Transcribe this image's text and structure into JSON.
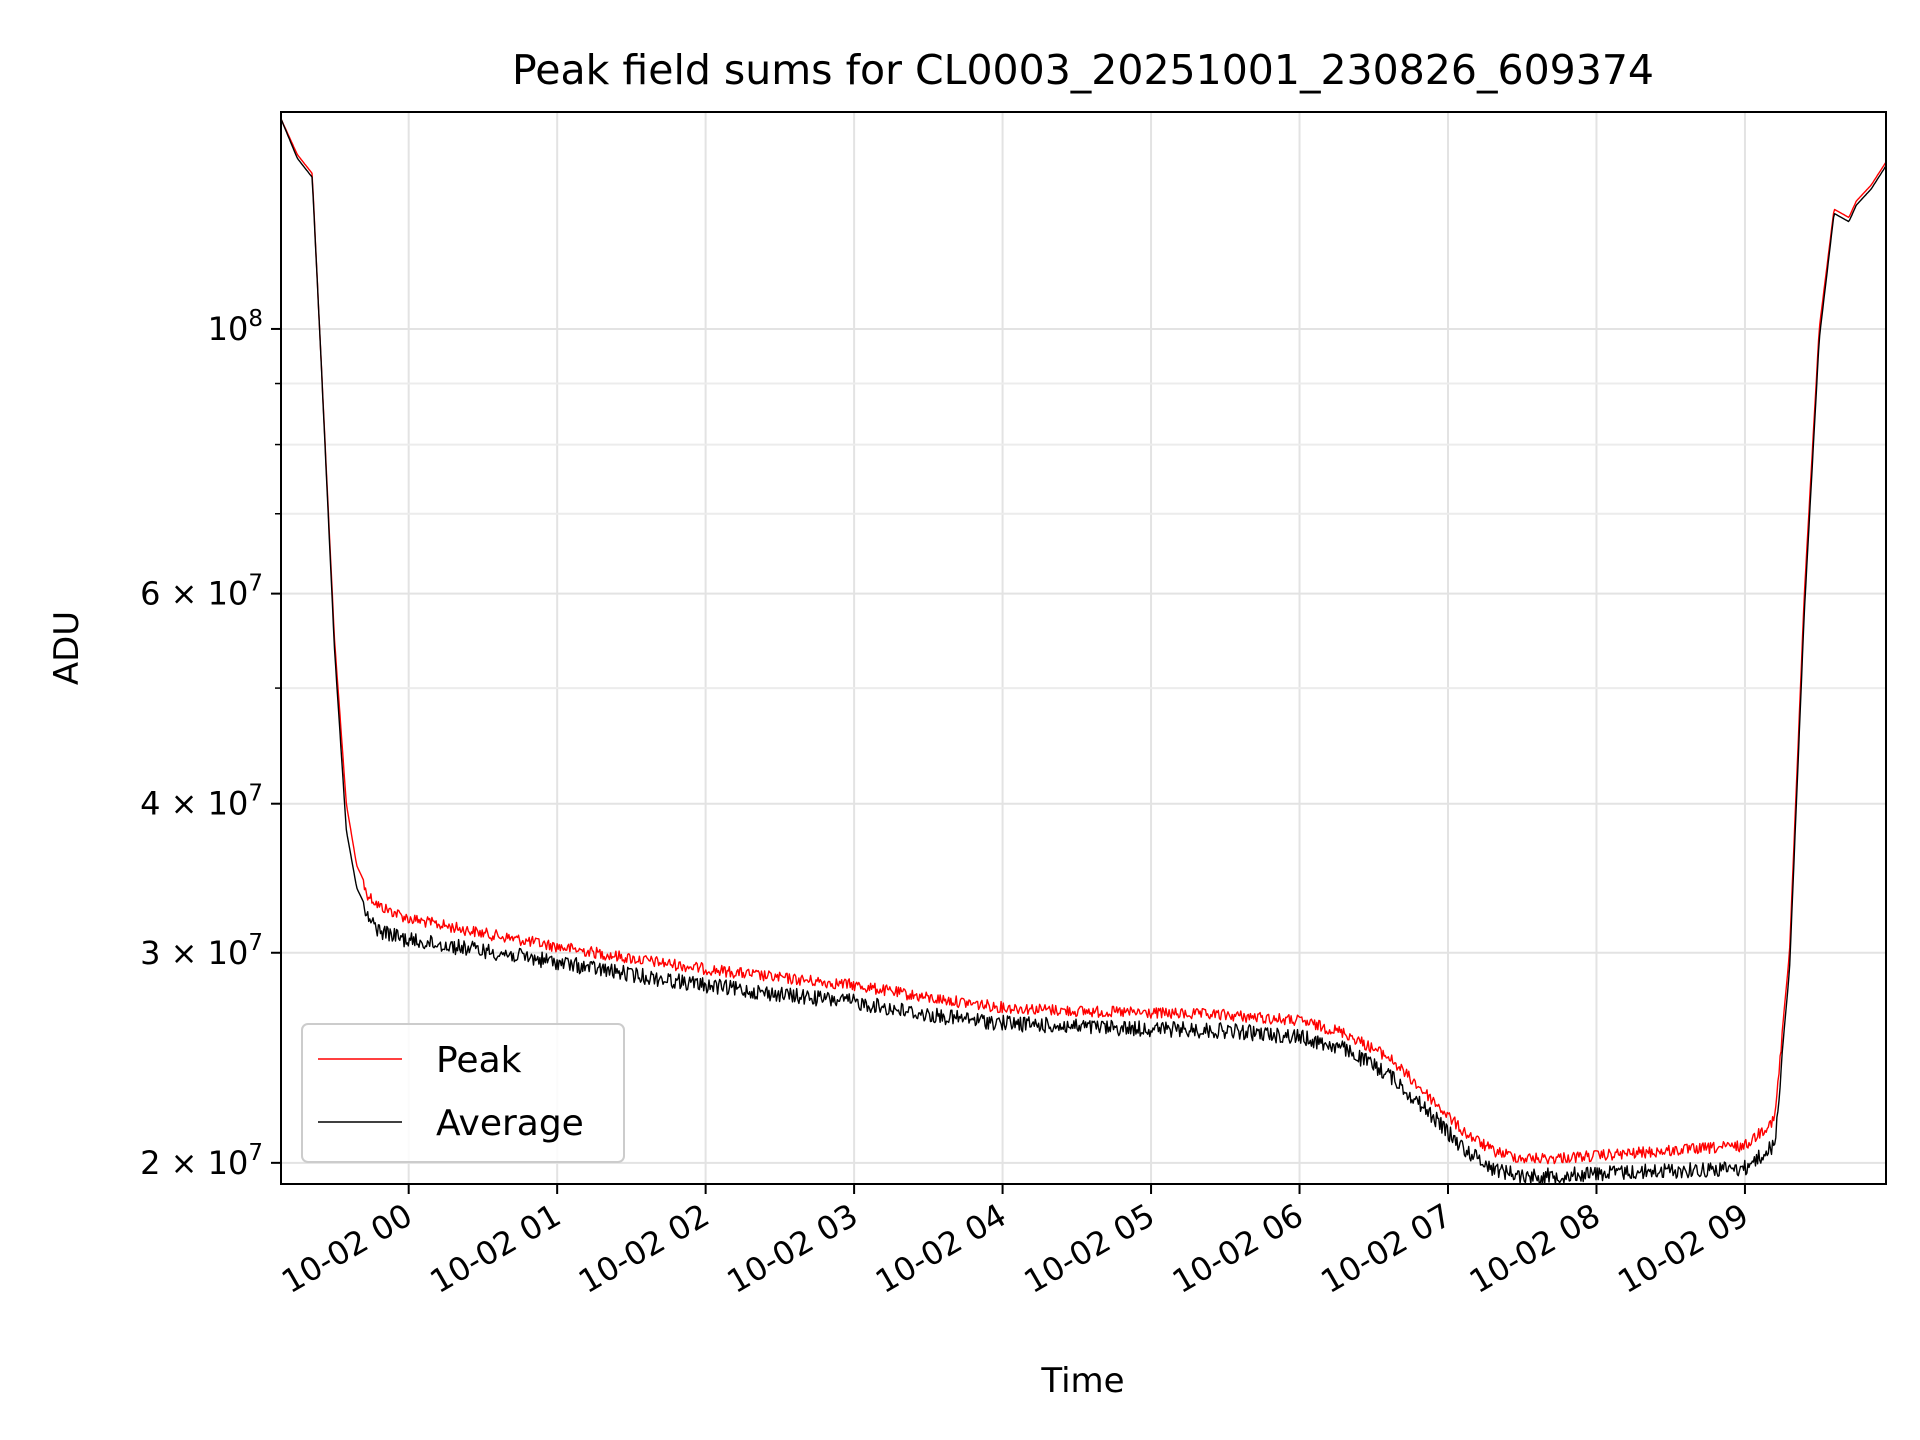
{
  "chart_data": {
    "type": "line",
    "title": "Peak field sums for CL0003_20251001_230826_609374",
    "xlabel": "Time",
    "ylabel": "ADU",
    "yscale": "log",
    "ylim": [
      19200000,
      152000000
    ],
    "xlim_hours": [
      -0.86,
      9.95
    ],
    "grid": true,
    "legend_position": "lower-left",
    "x_tick_labels": [
      "10-02 00",
      "10-02 01",
      "10-02 02",
      "10-02 03",
      "10-02 04",
      "10-02 05",
      "10-02 06",
      "10-02 07",
      "10-02 08",
      "10-02 09"
    ],
    "x_tick_hours": [
      0,
      1,
      2,
      3,
      4,
      5,
      6,
      7,
      8,
      9
    ],
    "y_major_ticks": [
      {
        "value": 100000000,
        "mantissa": "",
        "exponent": "8"
      },
      {
        "value": 60000000,
        "mantissa": "6",
        "exponent": "7"
      },
      {
        "value": 40000000,
        "mantissa": "4",
        "exponent": "7"
      },
      {
        "value": 30000000,
        "mantissa": "3",
        "exponent": "7"
      },
      {
        "value": 20000000,
        "mantissa": "2",
        "exponent": "7"
      }
    ],
    "y_minor_ticks": [
      90000000,
      80000000,
      70000000,
      50000000
    ],
    "series": [
      {
        "name": "Peak",
        "color": "#ff0000",
        "x_hours": [
          -0.86,
          -0.75,
          -0.65,
          -0.6,
          -0.5,
          -0.42,
          -0.35,
          -0.28,
          -0.2,
          -0.1,
          0.0,
          0.5,
          1.0,
          1.5,
          2.0,
          2.5,
          3.0,
          3.5,
          4.0,
          4.5,
          5.0,
          5.5,
          6.0,
          6.3,
          6.6,
          6.9,
          7.1,
          7.3,
          7.5,
          7.7,
          8.0,
          8.5,
          9.0,
          9.2,
          9.3,
          9.4,
          9.5,
          9.6,
          9.7,
          9.75,
          9.85,
          9.95
        ],
        "values": [
          150000000,
          140000000,
          135000000,
          100000000,
          55000000,
          40000000,
          35500000,
          34000000,
          33200000,
          32800000,
          32400000,
          31500000,
          30700000,
          30000000,
          29400000,
          28900000,
          28500000,
          27800000,
          27300000,
          27100000,
          27000000,
          26900000,
          26600000,
          26000000,
          24800000,
          22800000,
          21500000,
          20700000,
          20400000,
          20400000,
          20500000,
          20700000,
          20900000,
          22000000,
          30000000,
          60000000,
          100000000,
          126000000,
          124000000,
          128000000,
          132000000,
          138000000
        ]
      },
      {
        "name": "Average",
        "color": "#000000",
        "x_hours": [
          -0.86,
          -0.75,
          -0.65,
          -0.6,
          -0.5,
          -0.42,
          -0.35,
          -0.28,
          -0.2,
          -0.1,
          0.0,
          0.5,
          1.0,
          1.5,
          2.0,
          2.5,
          3.0,
          3.5,
          4.0,
          4.5,
          5.0,
          5.5,
          6.0,
          6.3,
          6.6,
          6.9,
          7.1,
          7.3,
          7.5,
          7.7,
          8.0,
          8.5,
          9.0,
          9.2,
          9.3,
          9.4,
          9.5,
          9.6,
          9.7,
          9.75,
          9.85,
          9.95
        ],
        "values": [
          150000000,
          139000000,
          134000000,
          100000000,
          54000000,
          38000000,
          34000000,
          32600000,
          31800000,
          31500000,
          31200000,
          30600000,
          29900000,
          29200000,
          28600000,
          28100000,
          27700000,
          27000000,
          26600000,
          26400000,
          26300000,
          26200000,
          25900000,
          25300000,
          24100000,
          22200000,
          20900000,
          20100000,
          19800000,
          19800000,
          19900000,
          20000000,
          20100000,
          21000000,
          29000000,
          58000000,
          98000000,
          125000000,
          123000000,
          127000000,
          131000000,
          137000000
        ]
      }
    ]
  }
}
